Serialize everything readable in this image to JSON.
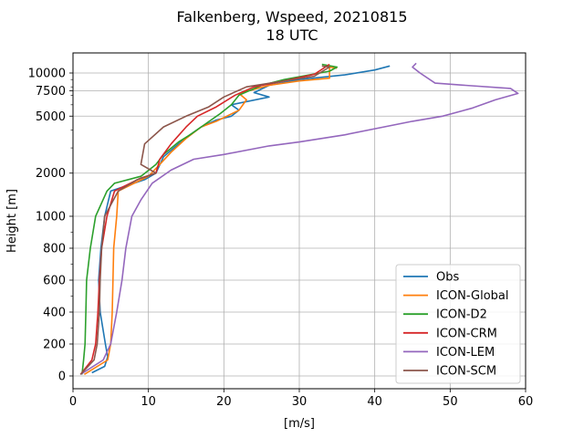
{
  "chart_data": {
    "type": "line",
    "title_line1": "Falkenberg, Wspeed, 20210815",
    "title_line2": "18 UTC",
    "xlabel": "[m/s]",
    "ylabel": "Height [m]",
    "xlim": [
      0,
      60
    ],
    "xticks": [
      0,
      10,
      20,
      30,
      40,
      50,
      60
    ],
    "xtick_labels": [
      "0",
      "10",
      "20",
      "30",
      "40",
      "50",
      "60"
    ],
    "yscale": "piecewise: linear 0-1000 m, logarithmic above 1000 m",
    "ylim": [
      -50,
      13000
    ],
    "yticks": [
      0,
      200,
      400,
      600,
      800,
      1000,
      2000,
      5000,
      7500,
      10000
    ],
    "ytick_labels": [
      "0",
      "200",
      "400",
      "600",
      "800",
      "1000",
      "2000",
      "5000",
      "7500",
      "10000"
    ],
    "grid": true,
    "legend_position": "lower right",
    "series": [
      {
        "name": "Obs",
        "color": "#1f77b4",
        "points": [
          [
            2.5,
            20
          ],
          [
            4.2,
            60
          ],
          [
            4.6,
            120
          ],
          [
            4.3,
            200
          ],
          [
            3.6,
            400
          ],
          [
            3.4,
            600
          ],
          [
            3.7,
            800
          ],
          [
            4.2,
            1000
          ],
          [
            5.0,
            1500
          ],
          [
            9.5,
            1800
          ],
          [
            11.0,
            2000
          ],
          [
            12.0,
            2600
          ],
          [
            14.0,
            3200
          ],
          [
            15.5,
            3700
          ],
          [
            17.0,
            4200
          ],
          [
            19.0,
            4700
          ],
          [
            21.0,
            5000
          ],
          [
            22.0,
            5500
          ],
          [
            21.0,
            6000
          ],
          [
            26.0,
            6800
          ],
          [
            24.0,
            7300
          ],
          [
            26.0,
            8200
          ],
          [
            30.0,
            9000
          ],
          [
            36.0,
            9700
          ],
          [
            40.0,
            10500
          ],
          [
            42.0,
            11200
          ]
        ]
      },
      {
        "name": "ICON-Global",
        "color": "#ff7f0e",
        "points": [
          [
            1.5,
            10
          ],
          [
            4.6,
            100
          ],
          [
            5.0,
            200
          ],
          [
            5.2,
            400
          ],
          [
            5.3,
            600
          ],
          [
            5.4,
            800
          ],
          [
            5.8,
            1000
          ],
          [
            6.0,
            1500
          ],
          [
            10.0,
            1900
          ],
          [
            11.5,
            2300
          ],
          [
            13.0,
            2800
          ],
          [
            15.0,
            3500
          ],
          [
            17.0,
            4200
          ],
          [
            19.0,
            4600
          ],
          [
            22.0,
            5500
          ],
          [
            23.0,
            6500
          ],
          [
            22.0,
            7200
          ],
          [
            26.0,
            8200
          ],
          [
            30.0,
            8800
          ],
          [
            34.0,
            9200
          ],
          [
            34.0,
            11000
          ],
          [
            35.0,
            10800
          ]
        ]
      },
      {
        "name": "ICON-D2",
        "color": "#2ca02c",
        "points": [
          [
            1.2,
            10
          ],
          [
            1.4,
            100
          ],
          [
            1.6,
            200
          ],
          [
            1.7,
            400
          ],
          [
            1.8,
            600
          ],
          [
            2.3,
            800
          ],
          [
            3.0,
            1000
          ],
          [
            4.5,
            1500
          ],
          [
            5.5,
            1700
          ],
          [
            9.0,
            1900
          ],
          [
            11.0,
            2300
          ],
          [
            12.0,
            2700
          ],
          [
            14.0,
            3300
          ],
          [
            15.5,
            3700
          ],
          [
            17.0,
            4200
          ],
          [
            19.5,
            5200
          ],
          [
            21.0,
            6000
          ],
          [
            22.0,
            7000
          ],
          [
            25.0,
            8200
          ],
          [
            28.0,
            9000
          ],
          [
            34.0,
            10300
          ],
          [
            35.0,
            11000
          ],
          [
            33.0,
            11500
          ]
        ]
      },
      {
        "name": "ICON-CRM",
        "color": "#d62728",
        "points": [
          [
            1.0,
            10
          ],
          [
            2.5,
            100
          ],
          [
            3.0,
            200
          ],
          [
            3.3,
            400
          ],
          [
            3.5,
            600
          ],
          [
            3.8,
            800
          ],
          [
            4.5,
            1000
          ],
          [
            5.5,
            1500
          ],
          [
            9.0,
            1850
          ],
          [
            11.0,
            2000
          ],
          [
            11.5,
            2500
          ],
          [
            13.0,
            3200
          ],
          [
            15.0,
            4200
          ],
          [
            16.5,
            5000
          ],
          [
            19.0,
            5800
          ],
          [
            21.5,
            7000
          ],
          [
            24.0,
            8000
          ],
          [
            28.0,
            8800
          ],
          [
            32.0,
            9800
          ],
          [
            34.0,
            11500
          ]
        ]
      },
      {
        "name": "ICON-LEM",
        "color": "#9467bd",
        "points": [
          [
            1.0,
            10
          ],
          [
            4.0,
            100
          ],
          [
            5.0,
            200
          ],
          [
            5.8,
            400
          ],
          [
            6.5,
            600
          ],
          [
            7.0,
            800
          ],
          [
            7.8,
            1000
          ],
          [
            9.0,
            1300
          ],
          [
            10.5,
            1700
          ],
          [
            13.0,
            2100
          ],
          [
            16.0,
            2500
          ],
          [
            20.0,
            2700
          ],
          [
            26.0,
            3100
          ],
          [
            30.0,
            3300
          ],
          [
            36.0,
            3700
          ],
          [
            45.0,
            4600
          ],
          [
            49.0,
            5000
          ],
          [
            53.0,
            5700
          ],
          [
            56.0,
            6500
          ],
          [
            59.0,
            7200
          ],
          [
            58.0,
            7800
          ],
          [
            52.0,
            8200
          ],
          [
            48.0,
            8500
          ],
          [
            46.0,
            10000
          ],
          [
            45.0,
            11000
          ],
          [
            45.5,
            11700
          ]
        ]
      },
      {
        "name": "ICON-SCM",
        "color": "#8c564b",
        "points": [
          [
            1.0,
            10
          ],
          [
            2.8,
            100
          ],
          [
            3.2,
            200
          ],
          [
            3.5,
            400
          ],
          [
            3.6,
            600
          ],
          [
            3.8,
            800
          ],
          [
            4.2,
            1000
          ],
          [
            6.0,
            1500
          ],
          [
            8.5,
            1800
          ],
          [
            11.0,
            2000
          ],
          [
            9.0,
            2300
          ],
          [
            9.5,
            3200
          ],
          [
            12.0,
            4200
          ],
          [
            15.0,
            5000
          ],
          [
            18.0,
            5800
          ],
          [
            20.0,
            6800
          ],
          [
            23.0,
            8000
          ],
          [
            28.0,
            8800
          ],
          [
            32.0,
            9500
          ],
          [
            34.0,
            11000
          ],
          [
            33.0,
            11200
          ]
        ]
      }
    ]
  }
}
